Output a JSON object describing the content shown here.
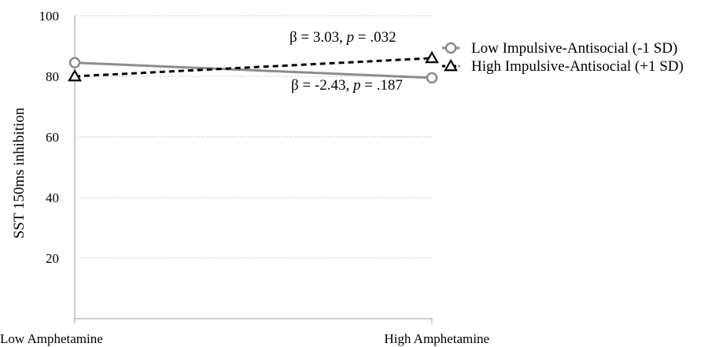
{
  "chart_data": {
    "type": "line",
    "title": "",
    "xlabel": "",
    "ylabel": "SST 150ms inhibition",
    "categories": [
      "Low Amphetamine",
      "High Amphetamine"
    ],
    "yticks": [
      20,
      40,
      60,
      80,
      100
    ],
    "ylim": [
      0,
      100
    ],
    "grid": "horizontal-dotted",
    "legend_position": "top-right",
    "series": [
      {
        "name": "Low Impulsive-Antisocial (-1 SD)",
        "values": [
          84.5,
          79.5
        ],
        "color": "#8c8c8c",
        "line_style": "solid",
        "marker": "circle-open"
      },
      {
        "name": "High Impulsive-Antisocial (+1 SD)",
        "values": [
          80,
          86
        ],
        "color": "#000000",
        "line_style": "dashed",
        "marker": "triangle-open"
      }
    ],
    "annotations": [
      {
        "prefix": "β = 3.03, ",
        "italic": "p",
        "suffix": " = .032",
        "near_series": 1
      },
      {
        "prefix": "β = -2.43, ",
        "italic": "p",
        "suffix": " = .187",
        "near_series": 0
      }
    ]
  }
}
